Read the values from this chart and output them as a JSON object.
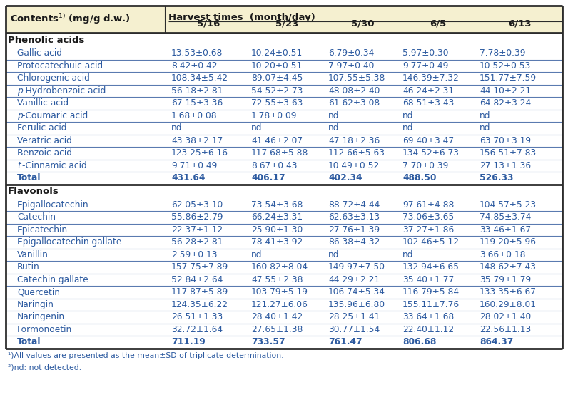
{
  "subheader_dates": [
    "5/16",
    "5/23",
    "5/30",
    "6/5",
    "6/13"
  ],
  "section1_header": "Phenolic acids",
  "section1_rows": [
    [
      "Gallic acid",
      "13.53±0.68",
      "10.24±0.51",
      "6.79±0.34",
      "5.97±0.30",
      "7.78±0.39"
    ],
    [
      "Protocatechuic acid",
      "8.42±0.42",
      "10.20±0.51",
      "7.97±0.40",
      "9.77±0.49",
      "10.52±0.53"
    ],
    [
      "Chlorogenic acid",
      "108.34±5.42",
      "89.07±4.45",
      "107.55±5.38",
      "146.39±7.32",
      "151.77±7.59"
    ],
    [
      "p-Hydrobenzoic acid",
      "56.18±2.81",
      "54.52±2.73",
      "48.08±2.40",
      "46.24±2.31",
      "44.10±2.21"
    ],
    [
      "Vanillic acid",
      "67.15±3.36",
      "72.55±3.63",
      "61.62±3.08",
      "68.51±3.43",
      "64.82±3.24"
    ],
    [
      "p-Coumaric acid",
      "1.68±0.08",
      "1.78±0.09",
      "nd",
      "nd",
      "nd"
    ],
    [
      "Ferulic acid",
      "nd",
      "nd",
      "nd",
      "nd",
      "nd"
    ],
    [
      "Veratric acid",
      "43.38±2.17",
      "41.46±2.07",
      "47.18±2.36",
      "69.40±3.47",
      "63.70±3.19"
    ],
    [
      "Benzoic acid",
      "123.25±6.16",
      "117.68±5.88",
      "112.66±5.63",
      "134.52±6.73",
      "156.51±7.83"
    ],
    [
      "t-Cinnamic acid",
      "9.71±0.49",
      "8.67±0.43",
      "10.49±0.52",
      "7.70±0.39",
      "27.13±1.36"
    ],
    [
      "Total",
      "431.64",
      "406.17",
      "402.34",
      "488.50",
      "526.33"
    ]
  ],
  "section2_header": "Flavonols",
  "section2_rows": [
    [
      "Epigallocatechin",
      "62.05±3.10",
      "73.54±3.68",
      "88.72±4.44",
      "97.61±4.88",
      "104.57±5.23"
    ],
    [
      "Catechin",
      "55.86±2.79",
      "66.24±3.31",
      "62.63±3.13",
      "73.06±3.65",
      "74.85±3.74"
    ],
    [
      "Epicatechin",
      "22.37±1.12",
      "25.90±1.30",
      "27.76±1.39",
      "37.27±1.86",
      "33.46±1.67"
    ],
    [
      "Epigallocatechin gallate",
      "56.28±2.81",
      "78.41±3.92",
      "86.38±4.32",
      "102.46±5.12",
      "119.20±5.96"
    ],
    [
      "Vanillin",
      "2.59±0.13",
      "nd",
      "nd",
      "nd",
      "3.66±0.18"
    ],
    [
      "Rutin",
      "157.75±7.89",
      "160.82±8.04",
      "149.97±7.50",
      "132.94±6.65",
      "148.62±7.43"
    ],
    [
      "Catechin gallate",
      "52.84±2.64",
      "47.55±2.38",
      "44.29±2.21",
      "35.40±1.77",
      "35.79±1.79"
    ],
    [
      "Quercetin",
      "117.87±5.89",
      "103.79±5.19",
      "106.74±5.34",
      "116.79±5.84",
      "133.35±6.67"
    ],
    [
      "Naringin",
      "124.35±6.22",
      "121.27±6.06",
      "135.96±6.80",
      "155.11±7.76",
      "160.29±8.01"
    ],
    [
      "Naringenin",
      "26.51±1.33",
      "28.40±1.42",
      "28.25±1.41",
      "33.64±1.68",
      "28.02±1.40"
    ],
    [
      "Formonoetin",
      "32.72±1.64",
      "27.65±1.38",
      "30.77±1.54",
      "22.40±1.12",
      "22.56±1.13"
    ],
    [
      "Total",
      "711.19",
      "733.57",
      "761.47",
      "806.68",
      "864.37"
    ]
  ],
  "footnotes": [
    "¹)All values are presented as the mean±SD of triplicate determination.",
    "²)nd: not detected."
  ],
  "header_bg": "#f5f0d0",
  "text_color_data": "#2c5aa0",
  "text_color_header": "#1a1a1a",
  "text_color_section": "#1a1a1a",
  "text_color_total": "#2c5aa0",
  "border_color": "#2c2c2c",
  "background_color": "#ffffff"
}
